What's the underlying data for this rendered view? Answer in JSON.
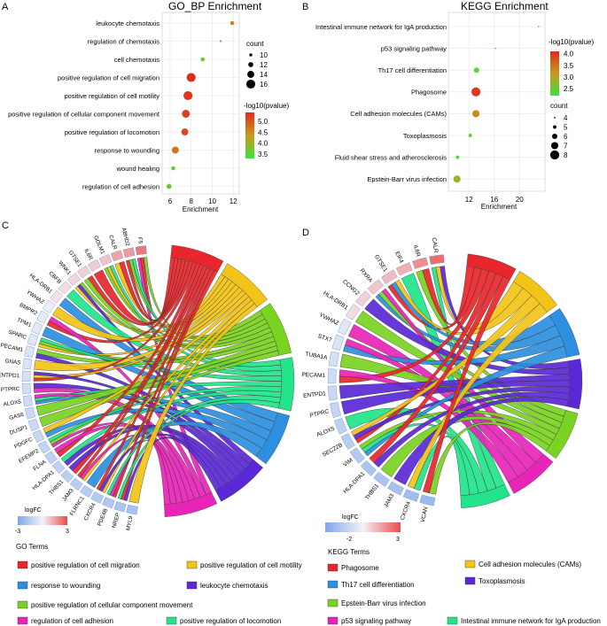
{
  "chart_data": [
    {
      "panel": "A",
      "type": "scatter",
      "title": "GO_BP Enrichment",
      "xlabel": "Enrichment",
      "ylabel": "",
      "xlim": [
        5.5,
        12.4
      ],
      "xticks": [
        "6",
        "8",
        "10",
        "12"
      ],
      "xtick_values": [
        6,
        8,
        10,
        12
      ],
      "categories": [
        "leukocyte chemotaxis",
        "regulation of chemotaxis",
        "cell chemotaxis",
        "positive regulation of cell migration",
        "positive regulation of cell motility",
        "positive regulation of cellular component movement",
        "positive regulation of locomotion",
        "response to wounding",
        "wound healing",
        "regulation of cell adhesion"
      ],
      "x": [
        11.9,
        10.8,
        9.1,
        8.0,
        7.7,
        7.5,
        7.4,
        6.5,
        6.3,
        5.9
      ],
      "count": [
        11,
        9,
        11,
        16,
        16,
        15,
        14,
        14,
        11,
        12
      ],
      "color_value": [
        4.6,
        3.5,
        3.6,
        5.4,
        5.3,
        5.2,
        5.1,
        4.7,
        3.5,
        3.7
      ],
      "legend_size": {
        "title": "count",
        "labels": [
          "10",
          "12",
          "14",
          "16"
        ],
        "values": [
          10,
          12,
          14,
          16
        ]
      },
      "legend_color": {
        "title": "-log10(pvalue)",
        "labels": [
          "5.0",
          "4.5",
          "4.0",
          "3.5"
        ],
        "values": [
          5.0,
          4.5,
          4.0,
          3.5
        ],
        "min": 3.3,
        "max": 5.4
      }
    },
    {
      "panel": "B",
      "type": "scatter",
      "title": "KEGG Enrichment",
      "xlabel": "Enrichment",
      "ylabel": "",
      "xlim": [
        9.3,
        23.6
      ],
      "xticks": [
        "12",
        "16",
        "20"
      ],
      "xtick_values": [
        12,
        16,
        20
      ],
      "categories": [
        "Intestinal immune network for IgA production",
        "p53 signaling pathway",
        "Th17 cell differentiation",
        "Phagosome",
        "Cell adhesion molecules (CAMs)",
        "Toxoplasmosis",
        "Fluid shear stress and atherosclerosis",
        "Epstein-Barr virus infection"
      ],
      "x": [
        23,
        16.2,
        13.2,
        13.1,
        13.1,
        12.2,
        10.2,
        10.1
      ],
      "count": [
        4,
        4,
        6,
        8,
        7,
        5,
        5,
        7
      ],
      "color_value": [
        2.4,
        2.3,
        2.4,
        4.0,
        3.3,
        2.6,
        2.3,
        2.8
      ],
      "legend_color": {
        "title": "-log10(pvalue)",
        "labels": [
          "4.0",
          "3.5",
          "3.0",
          "2.5"
        ],
        "values": [
          4.0,
          3.5,
          3.0,
          2.5
        ],
        "min": 2.2,
        "max": 4.1
      },
      "legend_size": {
        "title": "count",
        "labels": [
          "4",
          "5",
          "6",
          "7",
          "8"
        ],
        "values": [
          4,
          5,
          6,
          7,
          8
        ]
      }
    },
    {
      "panel": "C",
      "type": "chord",
      "genes": [
        "F5",
        "ABHD2",
        "CALR",
        "GOLM1",
        "IL6R",
        "GTSE1",
        "WNK1",
        "CBFB",
        "HLA-DRB1",
        "YWHAZ",
        "BMPR2",
        "TPM1",
        "SPARC",
        "PECAM1",
        "GNAS",
        "ENTPD1",
        "PTPRC",
        "ALOX5",
        "GAS6",
        "DUSP1",
        "PDGFC",
        "EFEMP2",
        "FLNA",
        "HLA-DPA1",
        "THBS1",
        "JAM3",
        "FLRNC1",
        "CXCR4",
        "PDE4B",
        "NREP",
        "MYL9"
      ],
      "terms": [
        "positive regulation of cell migration",
        "positive regulation of cell motility",
        "positive regulation of cellular component movement",
        "positive regulation of locomotion",
        "response to wounding",
        "leukocyte chemotaxis",
        "regulation of cell adhesion"
      ],
      "term_colors": [
        "#e8262b",
        "#f2c417",
        "#79d321",
        "#22e48a",
        "#2d8fe0",
        "#5a28d6",
        "#e825b8"
      ],
      "logfc": {
        "title": "logFC",
        "min_label": "-3",
        "max_label": "3",
        "min": -3,
        "max": 3
      },
      "gene_logfc": [
        2.2,
        1.6,
        1.4,
        0.8,
        0.7,
        0.6,
        0.5,
        0.4,
        0.3,
        -0.2,
        -0.3,
        -0.4,
        -0.5,
        -0.6,
        -0.6,
        -0.7,
        -0.8,
        -0.9,
        -1.0,
        -1.0,
        -1.1,
        -1.2,
        -1.3,
        -1.3,
        -1.4,
        -1.5,
        -1.5,
        -1.6,
        -1.7,
        -1.8,
        -1.9
      ],
      "legend_title": "GO   Terms"
    },
    {
      "panel": "D",
      "type": "chord",
      "genes": [
        "CALR",
        "IL6R",
        "EIF4",
        "GTSE1",
        "RXRA",
        "CCNG2",
        "HLA-DRB1",
        "YWHAZ",
        "STX7",
        "TUBA1A",
        "PECAM1",
        "ENTPD1",
        "PTPRC",
        "ALOX5",
        "SEC22B",
        "VIM",
        "HLA-DPA1",
        "THBS1",
        "JAM3",
        "CXCR4",
        "VCAN"
      ],
      "terms": [
        "Phagosome",
        "Cell adhesion molecules (CAMs)",
        "Th17 cell differentiation",
        "Toxoplasmosis",
        "Epstein-Barr virus infection",
        "p53 signaling pathway",
        "Intestinal immune network for IgA production"
      ],
      "term_colors": [
        "#e8262b",
        "#f2c417",
        "#2d8fe0",
        "#5a28d6",
        "#79d321",
        "#e825b8",
        "#22e48a"
      ],
      "logfc": {
        "title": "logFC",
        "min_label": "-2",
        "max_label": "3",
        "min": -2,
        "max": 3
      },
      "gene_logfc": [
        2.4,
        1.8,
        1.2,
        1.0,
        0.8,
        0.6,
        0.4,
        -0.3,
        -0.4,
        -0.5,
        -0.6,
        -0.7,
        -0.8,
        -0.9,
        -1.0,
        -1.1,
        -1.2,
        -1.2,
        -1.3,
        -1.4,
        -1.5
      ],
      "legend_title": "KEGG Terms"
    }
  ],
  "panels": {
    "A": "A",
    "B": "B",
    "C": "C",
    "D": "D"
  },
  "legend_c": [
    {
      "label": "positive regulation of cell migration",
      "color": "#e8262b"
    },
    {
      "label": "positive regulation of cell motility",
      "color": "#f2c417"
    },
    {
      "label": "response to wounding",
      "color": "#2d8fe0"
    },
    {
      "label": "leukocyte chemotaxis",
      "color": "#5a28d6"
    },
    {
      "label": "positive regulation of cellular component movement",
      "color": "#79d321"
    },
    {
      "label": "regulation of cell adhesion",
      "color": "#e825b8"
    },
    {
      "label": "positive regulation of locomotion",
      "color": "#22e48a"
    }
  ],
  "legend_d": [
    {
      "label": "Phagosome",
      "color": "#e8262b"
    },
    {
      "label": "Cell adhesion molecules (CAMs)",
      "color": "#f2c417"
    },
    {
      "label": "Th17 cell differentiation",
      "color": "#2d8fe0"
    },
    {
      "label": "Toxoplasmosis",
      "color": "#5a28d6"
    },
    {
      "label": "Epstein-Barr virus infection",
      "color": "#79d321"
    },
    {
      "label": "p53 signaling pathway",
      "color": "#e825b8"
    },
    {
      "label": "Intestinal immune network for IgA production",
      "color": "#22e48a"
    }
  ]
}
